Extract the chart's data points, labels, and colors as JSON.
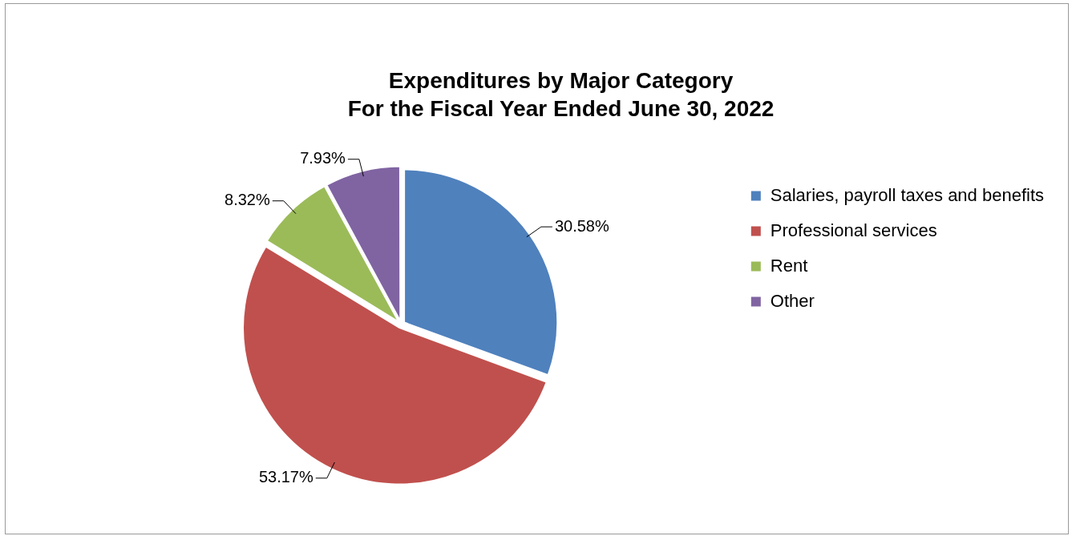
{
  "chart_data": {
    "type": "pie",
    "title": "Expenditures by Major Category",
    "subtitle": "For the Fiscal Year Ended June 30, 2022",
    "categories": [
      "Salaries, payroll taxes and benefits",
      "Professional services",
      "Rent",
      "Other"
    ],
    "values": [
      30.58,
      53.17,
      8.32,
      7.93
    ],
    "colors": [
      "#4f81bd",
      "#c0504d",
      "#9bbb59",
      "#8064a2"
    ],
    "value_labels": [
      "30.58%",
      "53.17%",
      "8.32%",
      "7.93%"
    ],
    "legend": "right"
  }
}
